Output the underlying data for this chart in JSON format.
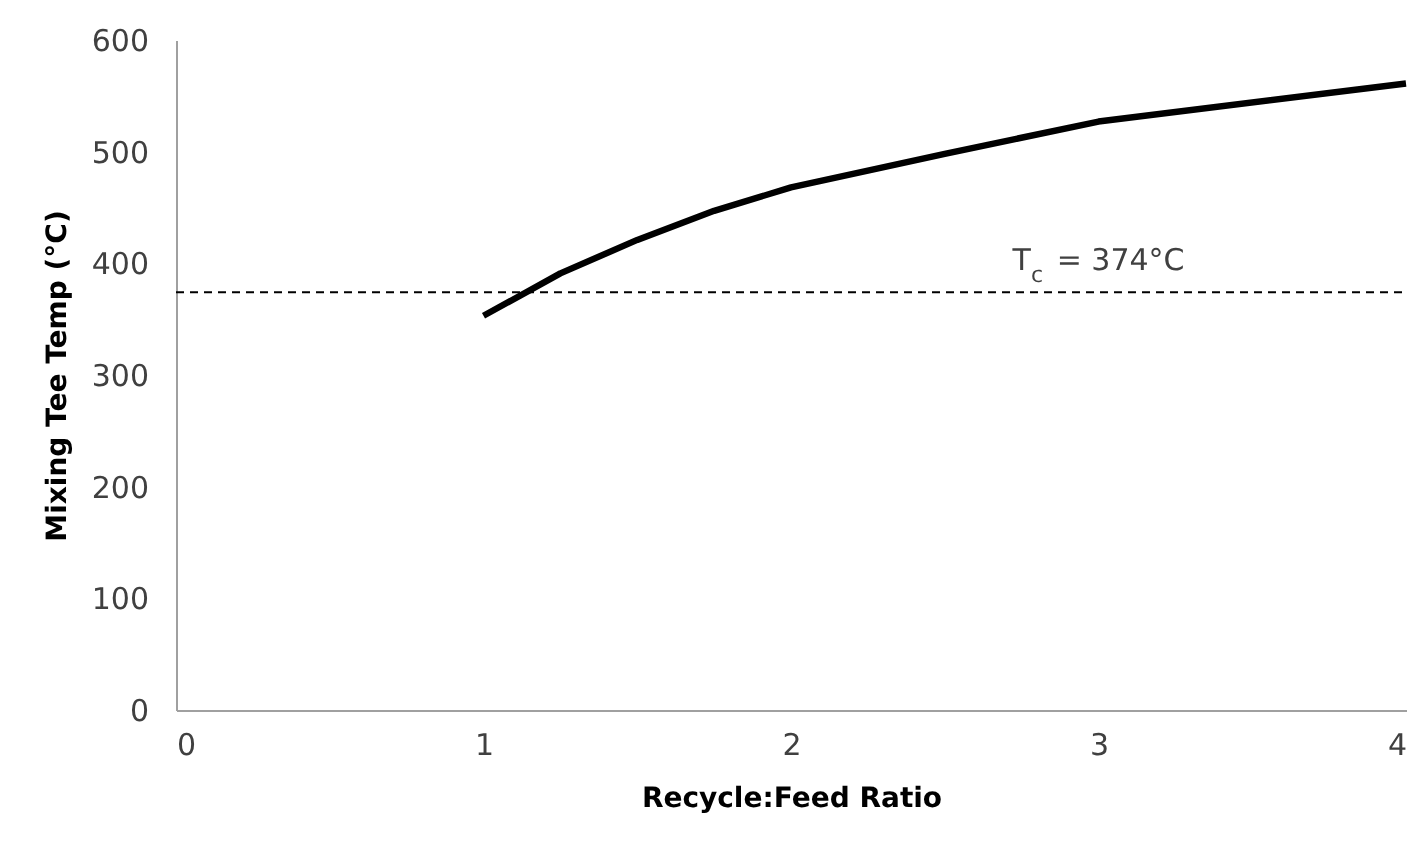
{
  "chart_data": {
    "type": "line",
    "xlabel": "Recycle:Feed Ratio",
    "ylabel": "Mixing Tee Temp (°C)",
    "x": [
      1,
      1.25,
      1.5,
      1.75,
      2,
      2.5,
      3,
      4
    ],
    "series": [
      {
        "color": "#000000",
        "values": [
          353,
          391,
          421,
          447,
          468,
          498,
          527,
          561
        ]
      }
    ],
    "xlim": [
      0,
      4
    ],
    "xticks": [
      0,
      1,
      2,
      3,
      4
    ],
    "ylim": [
      0,
      600
    ],
    "yticks": [
      0,
      100,
      200,
      300,
      400,
      500,
      600
    ],
    "ref_lines": [
      {
        "axis": "y",
        "value": 374,
        "label": "T$_{c}$ = 374°C",
        "color": "#000000",
        "line_style": "dashed"
      }
    ],
    "grid": false,
    "marker": "none",
    "line_style": "solid"
  }
}
